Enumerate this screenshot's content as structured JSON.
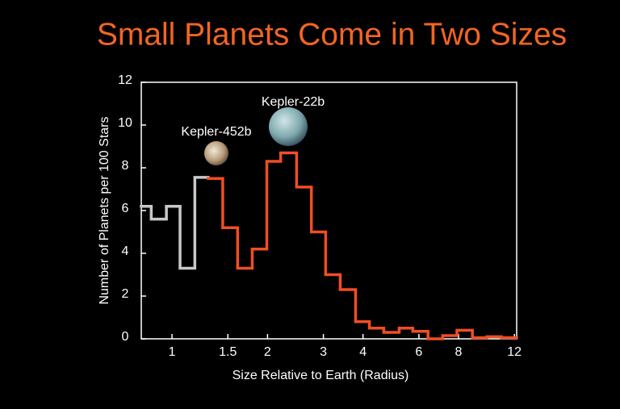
{
  "chart_data": {
    "type": "step-histogram",
    "title": "Small Planets Come in Two Sizes",
    "xlabel": "Size Relative to Earth (Radius)",
    "ylabel": "Number of Planets per 100 Stars",
    "xscale": "log",
    "xlim": [
      0.8,
      12.2
    ],
    "ylim": [
      0,
      12
    ],
    "xticks": [
      1,
      1.5,
      2,
      3,
      4,
      6,
      8,
      12
    ],
    "yticks": [
      0,
      2,
      4,
      6,
      8,
      10,
      12
    ],
    "annotations": [
      "Kepler-452b",
      "Kepler-22b"
    ],
    "series": [
      {
        "color": "#c8c8c8",
        "bins": [
          0.8,
          0.86,
          0.96,
          1.06,
          1.18,
          1.3
        ],
        "values": [
          6.2,
          5.6,
          6.2,
          3.3,
          7.55
        ]
      },
      {
        "color": "#f04e23",
        "bins": [
          1.3,
          1.445,
          1.61,
          1.79,
          1.99,
          2.2,
          2.47,
          2.75,
          3.05,
          3.39,
          3.79,
          4.19,
          4.65,
          5.2,
          5.74,
          6.41,
          7.13,
          7.91,
          8.85,
          9.83,
          10.92,
          12.2
        ],
        "values": [
          7.5,
          5.2,
          3.3,
          4.2,
          8.3,
          8.7,
          7.1,
          5.0,
          3.0,
          2.3,
          0.8,
          0.5,
          0.3,
          0.5,
          0.35,
          0.0,
          0.15,
          0.4,
          0.05,
          0.1,
          0.05
        ]
      }
    ]
  }
}
